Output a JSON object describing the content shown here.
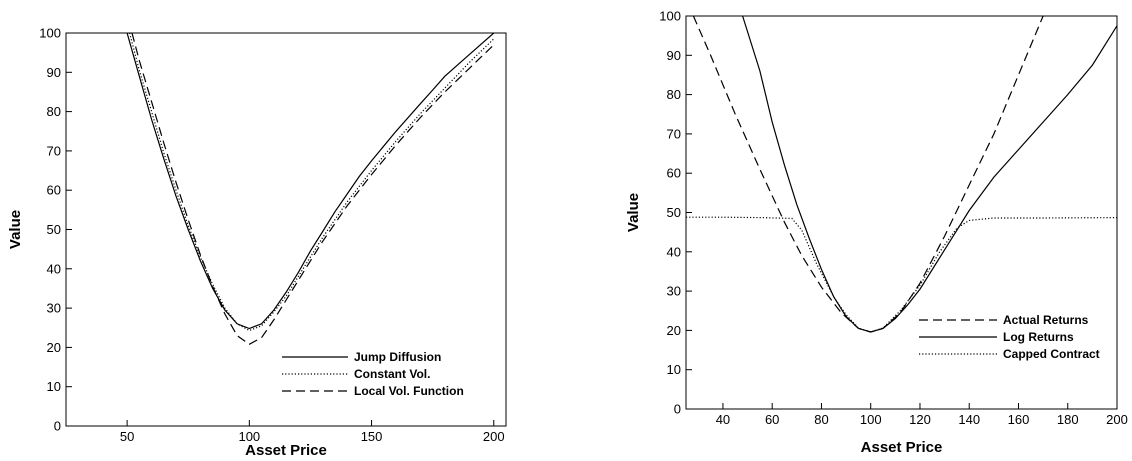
{
  "chart_data": [
    {
      "type": "line",
      "xlabel": "Asset Price",
      "ylabel": "Value",
      "xlim": [
        25,
        205
      ],
      "ylim": [
        0,
        100
      ],
      "xticks": [
        50,
        100,
        150,
        200
      ],
      "yticks": [
        0,
        10,
        20,
        30,
        40,
        50,
        60,
        70,
        80,
        90,
        100
      ],
      "grid": false,
      "legend": "bottom-right",
      "series": [
        {
          "name": "Jump Diffusion",
          "style": "solid",
          "points": [
            [
              50,
              100
            ],
            [
              55,
              89
            ],
            [
              60,
              78
            ],
            [
              65,
              68
            ],
            [
              70,
              58.5
            ],
            [
              75,
              50
            ],
            [
              80,
              42
            ],
            [
              85,
              35
            ],
            [
              90,
              29.5
            ],
            [
              95,
              26
            ],
            [
              100,
              24.8
            ],
            [
              105,
              26
            ],
            [
              110,
              29.5
            ],
            [
              115,
              34
            ],
            [
              120,
              39
            ],
            [
              125,
              44.5
            ],
            [
              130,
              49.5
            ],
            [
              135,
              54.5
            ],
            [
              140,
              59
            ],
            [
              145,
              63.5
            ],
            [
              150,
              67.5
            ],
            [
              160,
              75
            ],
            [
              170,
              82
            ],
            [
              175,
              85.5
            ],
            [
              180,
              89
            ],
            [
              190,
              94.5
            ],
            [
              200,
              100
            ]
          ]
        },
        {
          "name": "Constant Vol.",
          "style": "dotted",
          "points": [
            [
              51,
              100
            ],
            [
              55,
              90.5
            ],
            [
              60,
              80
            ],
            [
              65,
              69.5
            ],
            [
              70,
              60
            ],
            [
              75,
              51
            ],
            [
              80,
              43
            ],
            [
              85,
              36
            ],
            [
              90,
              30
            ],
            [
              95,
              26
            ],
            [
              100,
              24.3
            ],
            [
              105,
              25.5
            ],
            [
              110,
              29
            ],
            [
              115,
              33
            ],
            [
              120,
              38
            ],
            [
              125,
              43
            ],
            [
              130,
              48
            ],
            [
              135,
              52.5
            ],
            [
              140,
              57
            ],
            [
              145,
              61
            ],
            [
              150,
              65
            ],
            [
              160,
              72.5
            ],
            [
              170,
              79.5
            ],
            [
              180,
              86
            ],
            [
              190,
              92.5
            ],
            [
              200,
              98.5
            ]
          ]
        },
        {
          "name": "Local Vol. Function",
          "style": "dashed",
          "points": [
            [
              52,
              100
            ],
            [
              55,
              93
            ],
            [
              60,
              82.5
            ],
            [
              65,
              72
            ],
            [
              70,
              62
            ],
            [
              75,
              52.5
            ],
            [
              80,
              43.5
            ],
            [
              85,
              35.5
            ],
            [
              90,
              28.5
            ],
            [
              95,
              23
            ],
            [
              100,
              20.8
            ],
            [
              105,
              22.5
            ],
            [
              110,
              27
            ],
            [
              115,
              32
            ],
            [
              120,
              37
            ],
            [
              125,
              42
            ],
            [
              130,
              47
            ],
            [
              135,
              51.5
            ],
            [
              140,
              56
            ],
            [
              145,
              60
            ],
            [
              150,
              64
            ],
            [
              160,
              71.5
            ],
            [
              170,
              78.5
            ],
            [
              180,
              85
            ],
            [
              190,
              91
            ],
            [
              200,
              97
            ]
          ]
        }
      ]
    },
    {
      "type": "line",
      "xlabel": "Asset Price",
      "ylabel": "Value",
      "xlim": [
        25,
        200
      ],
      "ylim": [
        0,
        100
      ],
      "xticks": [
        40,
        60,
        80,
        100,
        120,
        140,
        160,
        180,
        200
      ],
      "yticks": [
        0,
        10,
        20,
        30,
        40,
        50,
        60,
        70,
        80,
        90,
        100
      ],
      "grid": false,
      "legend": "bottom-right",
      "series": [
        {
          "name": "Actual Returns",
          "style": "dashed",
          "points": [
            [
              28,
              100
            ],
            [
              35,
              90
            ],
            [
              45,
              75
            ],
            [
              55,
              61
            ],
            [
              65,
              47.5
            ],
            [
              72,
              39
            ],
            [
              80,
              31
            ],
            [
              88,
              24.5
            ],
            [
              95,
              20.5
            ],
            [
              100,
              19.6
            ],
            [
              105,
              20.5
            ],
            [
              112,
              24.5
            ],
            [
              120,
              32
            ],
            [
              130,
              44
            ],
            [
              140,
              57
            ],
            [
              150,
              70
            ],
            [
              160,
              85
            ],
            [
              170,
              100
            ]
          ]
        },
        {
          "name": "Log Returns",
          "style": "solid",
          "points": [
            [
              48,
              100
            ],
            [
              55,
              86
            ],
            [
              60,
              73
            ],
            [
              65,
              62
            ],
            [
              70,
              52
            ],
            [
              75,
              43.5
            ],
            [
              80,
              35.5
            ],
            [
              85,
              28.5
            ],
            [
              90,
              23.5
            ],
            [
              95,
              20.5
            ],
            [
              100,
              19.6
            ],
            [
              105,
              20.5
            ],
            [
              110,
              23
            ],
            [
              115,
              26.5
            ],
            [
              120,
              30.5
            ],
            [
              125,
              35.5
            ],
            [
              130,
              40.5
            ],
            [
              135,
              45.5
            ],
            [
              140,
              50.5
            ],
            [
              150,
              59
            ],
            [
              160,
              66
            ],
            [
              170,
              73
            ],
            [
              180,
              80
            ],
            [
              190,
              87.5
            ],
            [
              200,
              97.5
            ]
          ]
        },
        {
          "name": "Capped Contract",
          "style": "dotted",
          "points": [
            [
              25,
              48.8
            ],
            [
              40,
              48.8
            ],
            [
              55,
              48.7
            ],
            [
              68,
              48.5
            ],
            [
              72,
              45.5
            ],
            [
              78,
              37
            ],
            [
              85,
              28.5
            ],
            [
              90,
              24
            ],
            [
              95,
              20.6
            ],
            [
              100,
              19.6
            ],
            [
              105,
              20.6
            ],
            [
              112,
              25
            ],
            [
              120,
              31.5
            ],
            [
              128,
              40
            ],
            [
              135,
              46
            ],
            [
              140,
              48
            ],
            [
              150,
              48.6
            ],
            [
              170,
              48.6
            ],
            [
              200,
              48.7
            ]
          ]
        }
      ]
    }
  ]
}
